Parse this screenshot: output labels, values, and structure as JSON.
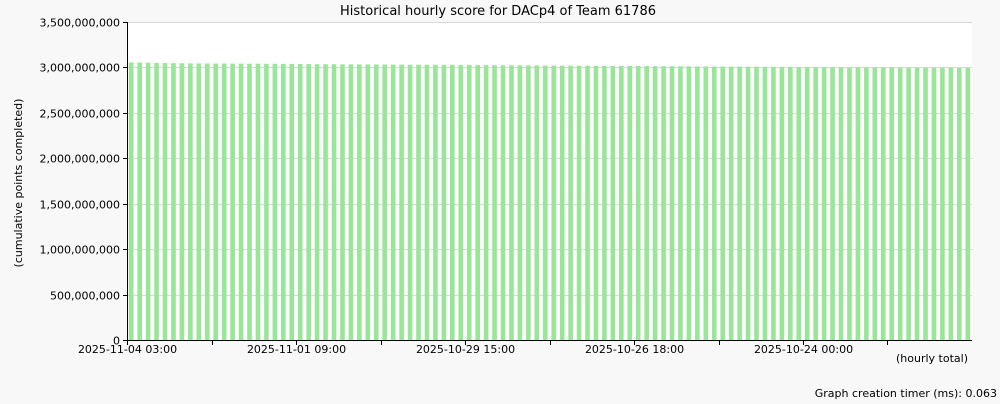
{
  "chart_data": {
    "type": "bar",
    "title": "Historical hourly score for DACp4 of Team 61786",
    "ylabel": "(cumulative points completed)",
    "xlabel": "(hourly total)",
    "footer": "Graph creation timer (ms): 0.063",
    "ylim": [
      0,
      3500000000
    ],
    "y_ticks": [
      0,
      500000000,
      1000000000,
      1500000000,
      2000000000,
      2500000000,
      3000000000,
      3500000000
    ],
    "y_tick_labels": [
      "0",
      "500,000,000",
      "1,000,000,000",
      "1,500,000,000",
      "2,000,000,000",
      "2,500,000,000",
      "3,000,000,000",
      "3,500,000,000"
    ],
    "x_tick_labels": [
      {
        "index": 0,
        "label": "2025-11-04 03:00"
      },
      {
        "index": 20,
        "label": "2025-11-01 09:00"
      },
      {
        "index": 40,
        "label": "2025-10-29 15:00"
      },
      {
        "index": 60,
        "label": "2025-10-26 18:00"
      },
      {
        "index": 80,
        "label": "2025-10-24 00:00"
      }
    ],
    "x_minor_tick_indices": [
      10,
      30,
      50,
      70,
      90
    ],
    "bar_color": "#99e699",
    "grid": true,
    "values": [
      3055000000,
      3054000000,
      3053000000,
      3049000000,
      3048000000,
      3047000000,
      3046000000,
      3045000000,
      3044000000,
      3044000000,
      3043000000,
      3043000000,
      3042000000,
      3042000000,
      3041000000,
      3041000000,
      3040000000,
      3040000000,
      3039000000,
      3039000000,
      3038000000,
      3037000000,
      3036000000,
      3035000000,
      3035000000,
      3034000000,
      3034000000,
      3033000000,
      3033000000,
      3032000000,
      3032000000,
      3031000000,
      3031000000,
      3030000000,
      3030000000,
      3029000000,
      3029000000,
      3028000000,
      3028000000,
      3027000000,
      3027000000,
      3026000000,
      3025000000,
      3024000000,
      3024000000,
      3023000000,
      3023000000,
      3022000000,
      3022000000,
      3021000000,
      3021000000,
      3020000000,
      3020000000,
      3019000000,
      3019000000,
      3018000000,
      3018000000,
      3017000000,
      3017000000,
      3016000000,
      3016000000,
      3015000000,
      3014000000,
      3013000000,
      3013000000,
      3012000000,
      3012000000,
      3011000000,
      3011000000,
      3010000000,
      3010000000,
      3009000000,
      3009000000,
      3008000000,
      3008000000,
      3007000000,
      3006000000,
      3006000000,
      3005000000,
      3004000000,
      3004000000,
      3003000000,
      3003000000,
      3002000000,
      3002000000,
      3001000000,
      3001000000,
      3000000000,
      3000000000,
      2999000000,
      2999000000,
      2998000000,
      2998000000,
      2997000000,
      2997000000,
      2996000000,
      2996000000,
      2995000000,
      2995000000,
      2994000000
    ]
  }
}
